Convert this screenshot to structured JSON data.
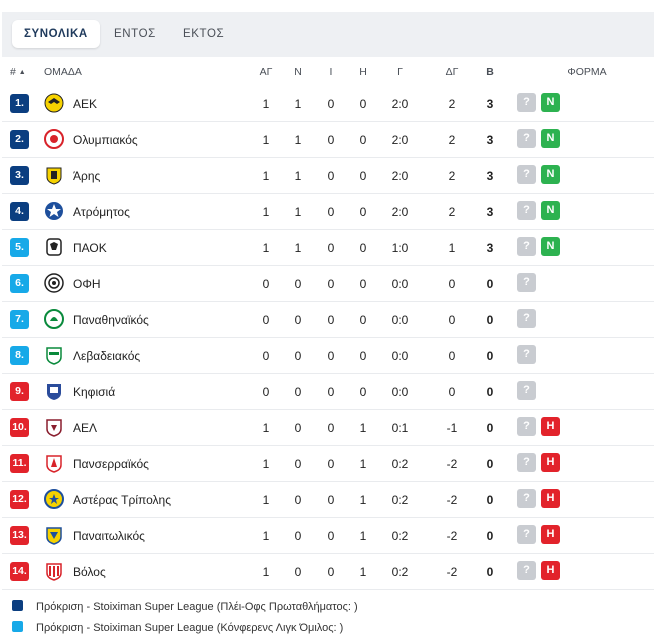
{
  "tabs": [
    "ΣΥΝΟΛΙΚΑ",
    "ΕΝΤΟΣ",
    "ΕΚΤΟΣ"
  ],
  "header": {
    "rank": "#",
    "sort": "▲",
    "team": "ΟΜΑΔΑ",
    "played": "ΑΓ",
    "win": "Ν",
    "draw": "Ι",
    "loss": "Η",
    "goals": "Γ",
    "diff": "ΔΓ",
    "points": "Β",
    "form": "ΦΟΡΜΑ"
  },
  "colors": {
    "darkblue": "#0b3e80",
    "lightblue": "#17a9e8",
    "red": "#e2232b"
  },
  "rows": [
    {
      "rank": "1.",
      "team": "ΑΕΚ",
      "crest": "aek-crest-icon",
      "played": "1",
      "win": "1",
      "draw": "0",
      "loss": "0",
      "goals": "2:0",
      "diff": "2",
      "points": "3",
      "zone": "darkblue",
      "form": [
        "?",
        "N"
      ]
    },
    {
      "rank": "2.",
      "team": "Ολυμπιακός",
      "crest": "olympiacos-crest-icon",
      "played": "1",
      "win": "1",
      "draw": "0",
      "loss": "0",
      "goals": "2:0",
      "diff": "2",
      "points": "3",
      "zone": "darkblue",
      "form": [
        "?",
        "N"
      ]
    },
    {
      "rank": "3.",
      "team": "Άρης",
      "crest": "aris-crest-icon",
      "played": "1",
      "win": "1",
      "draw": "0",
      "loss": "0",
      "goals": "2:0",
      "diff": "2",
      "points": "3",
      "zone": "darkblue",
      "form": [
        "?",
        "N"
      ]
    },
    {
      "rank": "4.",
      "team": "Ατρόμητος",
      "crest": "atromitos-crest-icon",
      "played": "1",
      "win": "1",
      "draw": "0",
      "loss": "0",
      "goals": "2:0",
      "diff": "2",
      "points": "3",
      "zone": "darkblue",
      "form": [
        "?",
        "N"
      ]
    },
    {
      "rank": "5.",
      "team": "ΠΑΟΚ",
      "crest": "paok-crest-icon",
      "played": "1",
      "win": "1",
      "draw": "0",
      "loss": "0",
      "goals": "1:0",
      "diff": "1",
      "points": "3",
      "zone": "lightblue",
      "form": [
        "?",
        "N"
      ]
    },
    {
      "rank": "6.",
      "team": "ΟΦΗ",
      "crest": "ofi-crest-icon",
      "played": "0",
      "win": "0",
      "draw": "0",
      "loss": "0",
      "goals": "0:0",
      "diff": "0",
      "points": "0",
      "zone": "lightblue",
      "form": [
        "?"
      ]
    },
    {
      "rank": "7.",
      "team": "Παναθηναϊκός",
      "crest": "panathinaikos-crest-icon",
      "played": "0",
      "win": "0",
      "draw": "0",
      "loss": "0",
      "goals": "0:0",
      "diff": "0",
      "points": "0",
      "zone": "lightblue",
      "form": [
        "?"
      ]
    },
    {
      "rank": "8.",
      "team": "Λεβαδειακός",
      "crest": "levadiakos-crest-icon",
      "played": "0",
      "win": "0",
      "draw": "0",
      "loss": "0",
      "goals": "0:0",
      "diff": "0",
      "points": "0",
      "zone": "lightblue",
      "form": [
        "?"
      ]
    },
    {
      "rank": "9.",
      "team": "Κηφισιά",
      "crest": "kifisia-crest-icon",
      "played": "0",
      "win": "0",
      "draw": "0",
      "loss": "0",
      "goals": "0:0",
      "diff": "0",
      "points": "0",
      "zone": "red",
      "form": [
        "?"
      ]
    },
    {
      "rank": "10.",
      "team": "ΑΕΛ",
      "crest": "ael-crest-icon",
      "played": "1",
      "win": "0",
      "draw": "0",
      "loss": "1",
      "goals": "0:1",
      "diff": "-1",
      "points": "0",
      "zone": "red",
      "form": [
        "?",
        "H"
      ]
    },
    {
      "rank": "11.",
      "team": "Πανσερραϊκός",
      "crest": "panserraikos-crest-icon",
      "played": "1",
      "win": "0",
      "draw": "0",
      "loss": "1",
      "goals": "0:2",
      "diff": "-2",
      "points": "0",
      "zone": "red",
      "form": [
        "?",
        "H"
      ]
    },
    {
      "rank": "12.",
      "team": "Αστέρας Τρίπολης",
      "crest": "asteras-crest-icon",
      "played": "1",
      "win": "0",
      "draw": "0",
      "loss": "1",
      "goals": "0:2",
      "diff": "-2",
      "points": "0",
      "zone": "red",
      "form": [
        "?",
        "H"
      ]
    },
    {
      "rank": "13.",
      "team": "Παναιτωλικός",
      "crest": "panetolikos-crest-icon",
      "played": "1",
      "win": "0",
      "draw": "0",
      "loss": "1",
      "goals": "0:2",
      "diff": "-2",
      "points": "0",
      "zone": "red",
      "form": [
        "?",
        "H"
      ]
    },
    {
      "rank": "14.",
      "team": "Βόλος",
      "crest": "volos-crest-icon",
      "played": "1",
      "win": "0",
      "draw": "0",
      "loss": "1",
      "goals": "0:2",
      "diff": "-2",
      "points": "0",
      "zone": "red",
      "form": [
        "?",
        "H"
      ]
    }
  ],
  "legend": [
    {
      "zone": "darkblue",
      "text": "Πρόκριση - Stoiximan Super League (Πλέι-Οφς Πρωταθλήματος: )"
    },
    {
      "zone": "lightblue",
      "text": "Πρόκριση - Stoiximan Super League (Κόνφερενς Λιγκ Όμιλος: )"
    }
  ]
}
